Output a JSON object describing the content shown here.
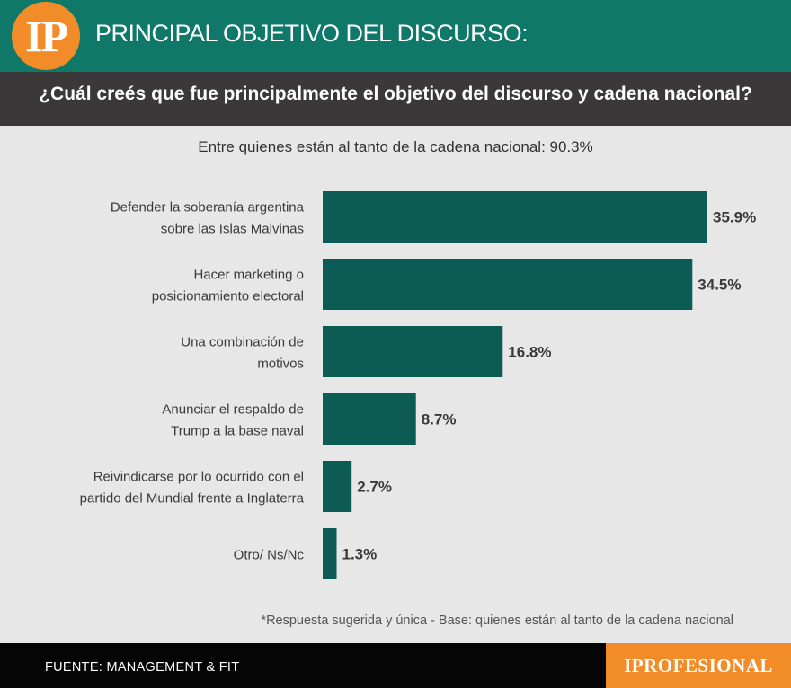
{
  "header": {
    "logo_text": "IP",
    "title": "PRINCIPAL OBJETIVO DEL DISCURSO:",
    "question": "¿Cuál creés que fue principalmente el objetivo del discurso y cadena nacional?"
  },
  "subtitle": "Entre quienes están al tanto de la cadena nacional: 90.3%",
  "colors": {
    "bar": "#0d5b55",
    "header_bg": "#107868",
    "question_bg": "#3a3838",
    "accent": "#f28c28"
  },
  "chart_data": {
    "type": "bar",
    "orientation": "horizontal",
    "categories": [
      [
        "Defender la soberanía argentina",
        "sobre las Islas Malvinas"
      ],
      [
        "Hacer marketing o",
        "posicionamiento electoral"
      ],
      [
        "Una combinación de",
        "motivos"
      ],
      [
        "Anunciar el respaldo de",
        "Trump a la base naval"
      ],
      [
        "Reivindicarse por lo ocurrido con el",
        "partido del Mundial frente a Inglaterra"
      ],
      [
        "Otro/ Ns/Nc"
      ]
    ],
    "values": [
      35.9,
      34.5,
      16.8,
      8.7,
      2.7,
      1.3
    ],
    "value_labels": [
      "35.9%",
      "34.5%",
      "16.8%",
      "8.7%",
      "2.7%",
      "1.3%"
    ],
    "xlim": [
      0,
      35.9
    ],
    "grid": false
  },
  "footnote": "*Respuesta sugerida y única - Base: quienes están al tanto de la cadena nacional",
  "footer": {
    "source": "FUENTE: MANAGEMENT & FIT",
    "brand": "IPROFESIONAL"
  }
}
